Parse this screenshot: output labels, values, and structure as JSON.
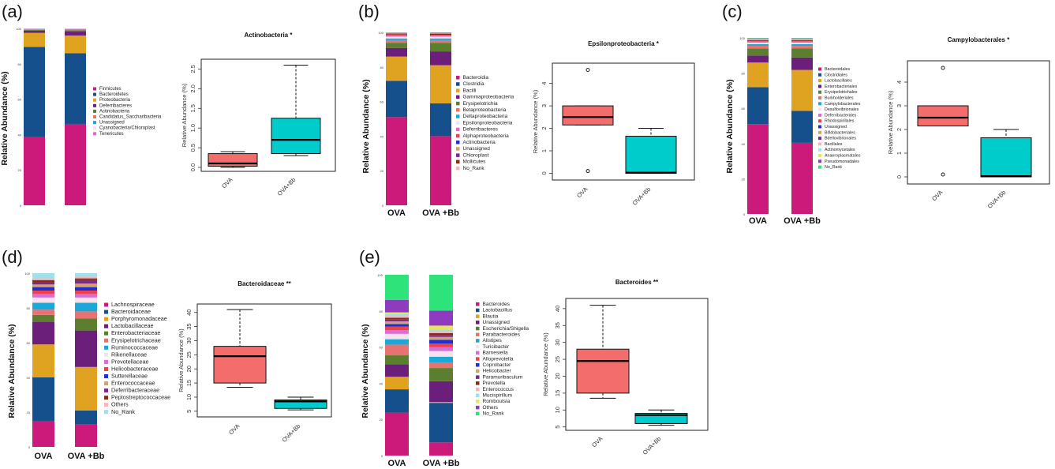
{
  "colors": {
    "OVA": "#f46d6d",
    "OVA+Bb": "#00cccc",
    "box_outline": "#000000"
  },
  "chart_data": [
    {
      "id": "a",
      "panel_label": "(a)",
      "type": "bar",
      "stacked": true,
      "ylabel": "Relative Abundance (%)",
      "ylim": [
        0,
        100
      ],
      "yticks": [
        "0",
        "20",
        "40",
        "60",
        "80",
        "100"
      ],
      "categories": [
        "OVA",
        "OVA+Bb"
      ],
      "category_labels_shown": false,
      "legend": [
        {
          "name": "Firmicutes",
          "color": "#cc1a7a"
        },
        {
          "name": "Bacteroidetes",
          "color": "#16508c"
        },
        {
          "name": "Proteobacteria",
          "color": "#e0a321"
        },
        {
          "name": "Deferribacteres",
          "color": "#6b1f7a"
        },
        {
          "name": "Actinobacteria",
          "color": "#5b7f2e"
        },
        {
          "name": "Candidatus_Saccharibacteria",
          "color": "#e8726f"
        },
        {
          "name": "Unassigned",
          "color": "#1ca7d9"
        },
        {
          "name": "Cyanobacteria/Chloroplast",
          "color": "#f2e3ec"
        },
        {
          "name": "Tenericutes",
          "color": "#d96dd6"
        }
      ],
      "stacks": [
        [
          38.5,
          51,
          8,
          1.2,
          0.5,
          0.3,
          0.2,
          0.1,
          0.2
        ],
        [
          46,
          40,
          10,
          2.2,
          0.8,
          0.4,
          0.2,
          0.2,
          0.2
        ]
      ],
      "box": {
        "title": "Actinobacteria *",
        "ylabel": "Relative Abundance (%)",
        "ylim": [
          -0.1,
          2.75
        ],
        "yticks": [
          0,
          0.5,
          1.0,
          1.5,
          2.0,
          2.5
        ],
        "ytick_labels": [
          "0.0",
          "0.5",
          "1.0",
          "1.5",
          "2.0",
          "2.5"
        ],
        "groups": [
          "OVA",
          "OVA+Bb"
        ],
        "stats": [
          {
            "min": 0.0,
            "q1": 0.03,
            "median": 0.1,
            "q3": 0.35,
            "max": 0.4,
            "outliers": []
          },
          {
            "min": 0.3,
            "q1": 0.35,
            "median": 0.7,
            "q3": 1.25,
            "max": 2.6,
            "outliers": []
          }
        ]
      }
    },
    {
      "id": "b",
      "panel_label": "(b)",
      "type": "bar",
      "stacked": true,
      "ylabel": "Relative Abundance (%)",
      "ylim": [
        0,
        100
      ],
      "yticks": [
        "0",
        "20",
        "40",
        "60",
        "80",
        "100"
      ],
      "categories": [
        "OVA",
        "OVA +Bb"
      ],
      "category_labels_shown": true,
      "legend": [
        {
          "name": "Bacteroidia",
          "color": "#cc1a7a"
        },
        {
          "name": "Clostridia",
          "color": "#16508c"
        },
        {
          "name": "Bacilli",
          "color": "#e0a321"
        },
        {
          "name": "Gammaproteobacteria",
          "color": "#6b1f7a"
        },
        {
          "name": "Erysipelotrichia",
          "color": "#5b7f2e"
        },
        {
          "name": "Betaproteobacteria",
          "color": "#e8726f"
        },
        {
          "name": "Deltaproteobacteria",
          "color": "#1ca7d9"
        },
        {
          "name": "Epsilonproteobacteria",
          "color": "#f2e3ec"
        },
        {
          "name": "Deferribacteres",
          "color": "#d96dd6"
        },
        {
          "name": "Alphaproteobacteria",
          "color": "#f0404a"
        },
        {
          "name": "Actinobacteria",
          "color": "#1f2fd1"
        },
        {
          "name": "Unassigned",
          "color": "#d4a36c"
        },
        {
          "name": "Chloroplast",
          "color": "#7a2a8a"
        },
        {
          "name": "Mollicutes",
          "color": "#8a2b12"
        },
        {
          "name": "No_Rank",
          "color": "#f6b3b8"
        }
      ],
      "stacks": [
        [
          51,
          21,
          14,
          5,
          3,
          1.5,
          1,
          1,
          0.6,
          0.5,
          0.4,
          0.3,
          0.2,
          0.2,
          0.3
        ],
        [
          40,
          19,
          22,
          8,
          5,
          1.5,
          1,
          1,
          0.6,
          0.5,
          0.5,
          0.3,
          0.2,
          0.2,
          0.2
        ]
      ],
      "box": {
        "title": "Epsilonproteobacteria *",
        "ylabel": "Relative Abundance (%)",
        "ylim": [
          -0.3,
          4.9
        ],
        "yticks": [
          0,
          1,
          2,
          3,
          4
        ],
        "ytick_labels": [
          "0",
          "1",
          "2",
          "3",
          "4"
        ],
        "groups": [
          "OVA",
          "OVA+Bb"
        ],
        "stats": [
          {
            "min": 2.15,
            "q1": 2.15,
            "median": 2.5,
            "q3": 3.0,
            "max": 3.0,
            "outliers": [
              4.6,
              0.1
            ]
          },
          {
            "min": 0.0,
            "q1": 0.0,
            "median": 0.03,
            "q3": 1.65,
            "max": 2.0,
            "outliers": []
          }
        ]
      }
    },
    {
      "id": "c",
      "panel_label": "(c)",
      "type": "bar",
      "stacked": true,
      "ylabel": "Relative Abundance (%)",
      "ylim": [
        0,
        100
      ],
      "yticks": [
        "0",
        "20",
        "40",
        "60",
        "80",
        "100"
      ],
      "categories": [
        "OVA",
        "OVA +Bb"
      ],
      "category_labels_shown": true,
      "legend": [
        {
          "name": "Bacteroidales",
          "color": "#cc1a7a"
        },
        {
          "name": "Clostridiales",
          "color": "#16508c"
        },
        {
          "name": "Lactobacillales",
          "color": "#e0a321"
        },
        {
          "name": "Enterobacteriales",
          "color": "#6b1f7a"
        },
        {
          "name": "Erysipelotrichales",
          "color": "#5b7f2e"
        },
        {
          "name": "Burkholderiales",
          "color": "#e8726f"
        },
        {
          "name": "Campylobacterales",
          "color": "#1ca7d9"
        },
        {
          "name": "Desulfovibrionales",
          "color": "#f2e3ec"
        },
        {
          "name": "Deferribacterales",
          "color": "#d96dd6"
        },
        {
          "name": "Rhodospirillales",
          "color": "#f0404a"
        },
        {
          "name": "Unassigned",
          "color": "#1f2fd1"
        },
        {
          "name": "Bifidobacteriales",
          "color": "#d4a36c"
        },
        {
          "name": "Bdellovibrionales",
          "color": "#7a2a8a"
        },
        {
          "name": "Bacillales",
          "color": "#f6b3b8"
        },
        {
          "name": "Actinomycetales",
          "color": "#9fe0ea"
        },
        {
          "name": "Anaeroplasmatales",
          "color": "#e6e65a"
        },
        {
          "name": "Pseudomonadales",
          "color": "#8e3bbf"
        },
        {
          "name": "No_Rank",
          "color": "#2ee37a"
        }
      ],
      "stacks": [
        [
          51,
          21,
          14,
          4,
          4,
          1.5,
          1,
          0.8,
          0.6,
          0.4,
          0.4,
          0.3,
          0.2,
          0.2,
          0.2,
          0.1,
          0.1,
          0.2
        ],
        [
          40,
          18,
          23,
          7,
          5,
          1.5,
          1,
          0.8,
          0.6,
          0.4,
          0.4,
          0.3,
          0.2,
          0.2,
          0.2,
          0.1,
          0.1,
          0.2
        ]
      ],
      "box": {
        "title": "Campylobacterales *",
        "ylabel": "Relative Abundance (%)",
        "ylim": [
          -0.3,
          4.9
        ],
        "yticks": [
          0,
          1,
          2,
          3,
          4
        ],
        "ytick_labels": [
          "0",
          "1",
          "2",
          "3",
          "4"
        ],
        "groups": [
          "OVA",
          "OVA+Bb"
        ],
        "stats": [
          {
            "min": 2.15,
            "q1": 2.15,
            "median": 2.5,
            "q3": 3.0,
            "max": 3.0,
            "outliers": [
              4.6,
              0.1
            ]
          },
          {
            "min": 0.0,
            "q1": 0.0,
            "median": 0.03,
            "q3": 1.65,
            "max": 2.0,
            "outliers": []
          }
        ]
      }
    },
    {
      "id": "d",
      "panel_label": "(d)",
      "type": "bar",
      "stacked": true,
      "ylabel": "Relative Abundance (%)",
      "ylim": [
        0,
        100
      ],
      "yticks": [
        "0",
        "20",
        "40",
        "60",
        "80",
        "100"
      ],
      "categories": [
        "OVA",
        "OVA +Bb"
      ],
      "category_labels_shown": true,
      "legend": [
        {
          "name": "Lachnospiraceae",
          "color": "#cc1a7a"
        },
        {
          "name": "Bacteroidaceae",
          "color": "#16508c"
        },
        {
          "name": "Porphyromonadaceae",
          "color": "#e0a321"
        },
        {
          "name": "Lactobacillaceae",
          "color": "#6b1f7a"
        },
        {
          "name": "Enterobacteriaceae",
          "color": "#5b7f2e"
        },
        {
          "name": "Erysipelotrichaceae",
          "color": "#e8726f"
        },
        {
          "name": "Ruminococcaceae",
          "color": "#1ca7d9"
        },
        {
          "name": "Rikenellaceae",
          "color": "#f2e3ec"
        },
        {
          "name": "Prevotellaceae",
          "color": "#d96dd6"
        },
        {
          "name": "Helicobacteraceae",
          "color": "#f0404a"
        },
        {
          "name": "Sutterellaceae",
          "color": "#1f2fd1"
        },
        {
          "name": "Enterococcaceae",
          "color": "#d4a36c"
        },
        {
          "name": "Deferribacteraceae",
          "color": "#7a2a8a"
        },
        {
          "name": "Peptostreptococcaceae",
          "color": "#8a2b12"
        },
        {
          "name": "Others",
          "color": "#f6b3b8"
        },
        {
          "name": "No_Rank",
          "color": "#9fe0ea"
        }
      ],
      "stacks": [
        [
          15,
          25,
          19,
          13,
          4,
          3,
          4,
          3,
          2,
          2,
          2,
          1.5,
          1.5,
          1,
          1,
          3
        ],
        [
          13,
          8,
          25,
          21,
          7,
          4,
          5,
          3,
          2,
          2,
          2,
          2,
          2,
          1,
          1,
          2
        ]
      ],
      "box": {
        "title": "Bacteroidaceae **",
        "ylabel": "Relative Abundance (%)",
        "ylim": [
          3,
          43
        ],
        "yticks": [
          5,
          10,
          15,
          20,
          25,
          30,
          35,
          40
        ],
        "ytick_labels": [
          "5",
          "10",
          "15",
          "20",
          "25",
          "30",
          "35",
          "40"
        ],
        "groups": [
          "OVA",
          "OVA+Bb"
        ],
        "stats": [
          {
            "min": 13.5,
            "q1": 15,
            "median": 24.5,
            "q3": 28,
            "max": 41,
            "outliers": []
          },
          {
            "min": 5.5,
            "q1": 6,
            "median": 8.5,
            "q3": 9,
            "max": 10,
            "outliers": []
          }
        ]
      }
    },
    {
      "id": "e",
      "panel_label": "(e)",
      "type": "bar",
      "stacked": true,
      "ylabel": "Relative Abundance (%)",
      "ylim": [
        0,
        100
      ],
      "yticks": [
        "0",
        "20",
        "40",
        "60",
        "80",
        "100"
      ],
      "categories": [
        "OVA",
        "OVA +Bb"
      ],
      "category_labels_shown": true,
      "legend": [
        {
          "name": "Bacteroides",
          "color": "#cc1a7a"
        },
        {
          "name": "Lactobacillus",
          "color": "#16508c"
        },
        {
          "name": "Blautia",
          "color": "#e0a321"
        },
        {
          "name": "Unassigned",
          "color": "#6b1f7a"
        },
        {
          "name": "Escherichia/Shigella",
          "color": "#5b7f2e"
        },
        {
          "name": "Parabacteroides",
          "color": "#e8726f"
        },
        {
          "name": "Alistipes",
          "color": "#1ca7d9"
        },
        {
          "name": "Turicibacter",
          "color": "#f2e3ec"
        },
        {
          "name": "Barnesiella",
          "color": "#d96dd6"
        },
        {
          "name": "Alloprevotella",
          "color": "#f0404a"
        },
        {
          "name": "Coprobacter",
          "color": "#1f2fd1"
        },
        {
          "name": "Helicobacter",
          "color": "#d4a36c"
        },
        {
          "name": "Paramuribaculum",
          "color": "#7a2a8a"
        },
        {
          "name": "Prevotella",
          "color": "#8a2b12"
        },
        {
          "name": "Enterococcus",
          "color": "#f6b3b8"
        },
        {
          "name": "Mucispirillum",
          "color": "#9fe0ea"
        },
        {
          "name": "Romboutsia",
          "color": "#e6e65a"
        },
        {
          "name": "Others",
          "color": "#8e3bbf"
        },
        {
          "name": "No_Rank",
          "color": "#2ee37a"
        }
      ],
      "stacks": [
        [
          24,
          13,
          7,
          7,
          5,
          6,
          3,
          3,
          2,
          2,
          1.5,
          1.5,
          1,
          1,
          1,
          1,
          1,
          7,
          14
        ],
        [
          7,
          21,
          0.5,
          11,
          7,
          3,
          3,
          3,
          2,
          2,
          2,
          1.5,
          1,
          1,
          1,
          1,
          2,
          8,
          19
        ]
      ],
      "box": {
        "title": "Bacteroides **",
        "ylabel": "Relative Abundance (%)",
        "ylim": [
          4,
          43
        ],
        "yticks": [
          5,
          10,
          15,
          20,
          25,
          30,
          35,
          40
        ],
        "ytick_labels": [
          "5",
          "10",
          "15",
          "20",
          "25",
          "30",
          "35",
          "40"
        ],
        "groups": [
          "OVA",
          "OVA+Bb"
        ],
        "stats": [
          {
            "min": 13.5,
            "q1": 15,
            "median": 24.5,
            "q3": 28,
            "max": 41,
            "outliers": []
          },
          {
            "min": 5.5,
            "q1": 6,
            "median": 8.5,
            "q3": 9,
            "max": 10,
            "outliers": []
          }
        ]
      }
    }
  ]
}
